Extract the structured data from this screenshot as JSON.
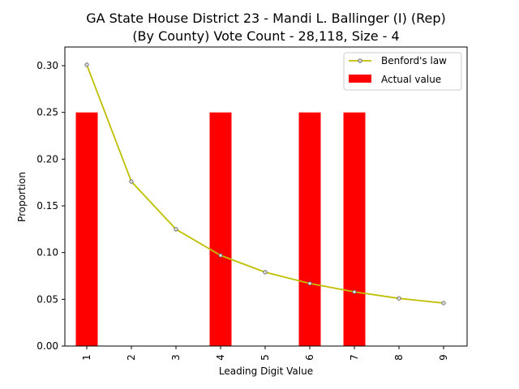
{
  "chart_data": {
    "type": "bar",
    "title": "GA State House District 23 - Mandi L. Ballinger (I) (Rep)",
    "subtitle": "(By County) Vote Count - 28,118, Size - 4",
    "xlabel": "Leading Digit Value",
    "ylabel": "Proportion",
    "categories": [
      "1",
      "2",
      "3",
      "4",
      "5",
      "6",
      "7",
      "8",
      "9"
    ],
    "ylim": [
      0,
      0.32
    ],
    "yticks": [
      "0.00",
      "0.05",
      "0.10",
      "0.15",
      "0.20",
      "0.25",
      "0.30"
    ],
    "grid": false,
    "legend_position": "top-right",
    "series": [
      {
        "name": "Benford's law",
        "kind": "line",
        "color": "#bfbf00",
        "values": [
          0.301,
          0.176,
          0.125,
          0.097,
          0.079,
          0.067,
          0.058,
          0.051,
          0.046
        ]
      },
      {
        "name": "Actual value",
        "kind": "bar",
        "color": "#ff0000",
        "values": [
          0.25,
          0,
          0,
          0.25,
          0,
          0.25,
          0.25,
          0,
          0
        ]
      }
    ]
  }
}
